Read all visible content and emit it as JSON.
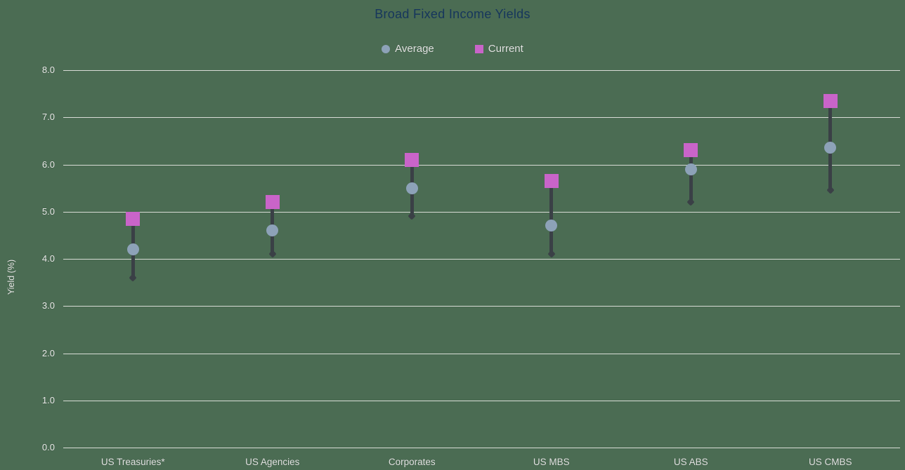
{
  "chart_data": {
    "type": "scatter",
    "subtype": "dumbbell-range",
    "title": "Broad Fixed Income Yields",
    "xlabel": "",
    "ylabel": "Yield (%)",
    "ylim": [
      0,
      8
    ],
    "ytick_labels": [
      "0.0",
      "1.0",
      "2.0",
      "3.0",
      "4.0",
      "5.0",
      "6.0",
      "7.0",
      "8.0"
    ],
    "grid": true,
    "legend_position": "top-center",
    "categories": [
      "US Treasuries*",
      "US Agencies",
      "Corporates",
      "US MBS",
      "US ABS",
      "US CMBS"
    ],
    "series": [
      {
        "name": "Average",
        "marker": "circle",
        "color": "#8DA2B8",
        "in_legend": true,
        "values": [
          4.2,
          4.6,
          5.5,
          4.7,
          5.9,
          6.35
        ]
      },
      {
        "name": "Current",
        "marker": "square",
        "color": "#C964C9",
        "in_legend": true,
        "values": [
          4.85,
          5.2,
          6.1,
          5.65,
          6.3,
          7.35
        ]
      },
      {
        "name": "Range low",
        "marker": "diamond",
        "color": "#3A4046",
        "in_legend": false,
        "values": [
          3.6,
          4.1,
          4.9,
          4.1,
          5.2,
          5.45
        ]
      }
    ],
    "range_bars": {
      "from_series": "Current",
      "to_series": "Range low",
      "color": "#3A4046"
    }
  },
  "colors": {
    "background": "#4B6C53",
    "gridline": "#E4E6E2",
    "title_text": "#16365C",
    "axis_text": "#ECEEEA",
    "average_marker": "#8DA2B8",
    "current_marker": "#C964C9",
    "range_line": "#3A4046"
  }
}
